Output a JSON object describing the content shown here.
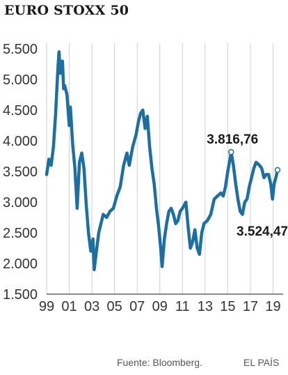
{
  "chart_data": {
    "type": "line",
    "title": "EURO STOXX 50",
    "xlabel": "",
    "ylabel": "",
    "ylim": [
      1500,
      5500
    ],
    "xlim": [
      1999,
      2019.4
    ],
    "grid": "vertical",
    "y_ticks": [
      1500,
      2000,
      2500,
      3000,
      3500,
      4000,
      4500,
      5000,
      5500
    ],
    "y_tick_labels": [
      "1.500",
      "2.000",
      "2.500",
      "3.000",
      "3.500",
      "4.000",
      "4.500",
      "5.000",
      "5.500"
    ],
    "x_ticks": [
      1999,
      2001,
      2003,
      2005,
      2007,
      2009,
      2011,
      2013,
      2015,
      2017,
      2019
    ],
    "x_tick_labels": [
      "99",
      "01",
      "03",
      "05",
      "07",
      "09",
      "11",
      "13",
      "15",
      "17",
      "19"
    ],
    "series": [
      {
        "color": "#1c6fa0",
        "x": [
          1999.0,
          1999.2,
          1999.4,
          1999.6,
          1999.8,
          2000.0,
          2000.1,
          2000.2,
          2000.4,
          2000.5,
          2000.6,
          2000.8,
          2001.0,
          2001.1,
          2001.3,
          2001.5,
          2001.7,
          2001.9,
          2002.1,
          2002.3,
          2002.5,
          2002.7,
          2002.9,
          2003.1,
          2003.2,
          2003.4,
          2003.6,
          2003.8,
          2004.0,
          2004.3,
          2004.6,
          2004.9,
          2005.2,
          2005.5,
          2005.8,
          2006.1,
          2006.3,
          2006.6,
          2006.9,
          2007.1,
          2007.3,
          2007.5,
          2007.7,
          2007.9,
          2008.1,
          2008.3,
          2008.5,
          2008.7,
          2008.9,
          2009.1,
          2009.2,
          2009.4,
          2009.6,
          2009.8,
          2010.0,
          2010.2,
          2010.4,
          2010.6,
          2010.8,
          2011.0,
          2011.3,
          2011.5,
          2011.7,
          2011.9,
          2012.1,
          2012.3,
          2012.5,
          2012.7,
          2012.9,
          2013.2,
          2013.5,
          2013.8,
          2014.1,
          2014.4,
          2014.6,
          2014.8,
          2015.0,
          2015.2,
          2015.3,
          2015.5,
          2015.7,
          2015.9,
          2016.1,
          2016.3,
          2016.5,
          2016.7,
          2016.9,
          2017.1,
          2017.3,
          2017.5,
          2017.8,
          2018.0,
          2018.2,
          2018.4,
          2018.6,
          2018.8,
          2018.95,
          2019.1,
          2019.25,
          2019.4
        ],
        "y": [
          3450,
          3700,
          3600,
          3900,
          4450,
          5200,
          5450,
          5100,
          5300,
          4850,
          4900,
          4750,
          4250,
          4550,
          3950,
          3550,
          2900,
          3650,
          3800,
          3550,
          2950,
          2500,
          2200,
          2400,
          1900,
          2200,
          2500,
          2650,
          2800,
          2750,
          2850,
          2900,
          3100,
          3250,
          3600,
          3800,
          3600,
          3900,
          4100,
          4300,
          4450,
          4500,
          4200,
          4400,
          3900,
          3550,
          3300,
          2900,
          2600,
          2200,
          1950,
          2400,
          2650,
          2850,
          2900,
          2800,
          2650,
          2700,
          2850,
          2900,
          3000,
          2600,
          2250,
          2350,
          2550,
          2250,
          2150,
          2500,
          2650,
          2700,
          2800,
          3050,
          3100,
          3150,
          3100,
          3250,
          3500,
          3700,
          3816.76,
          3600,
          3300,
          3050,
          2850,
          2800,
          3000,
          3050,
          3250,
          3400,
          3550,
          3650,
          3600,
          3550,
          3400,
          3450,
          3450,
          3300,
          3050,
          3300,
          3400,
          3524.47
        ]
      }
    ],
    "annotations": [
      {
        "label": "3.816,76",
        "x": 2015.3,
        "y": 3816.76
      },
      {
        "label": "3.524,47",
        "x": 2019.4,
        "y": 3524.47
      }
    ]
  },
  "footer": {
    "source": "Fuente: Bloomberg.",
    "brand": "EL PAÍS"
  }
}
